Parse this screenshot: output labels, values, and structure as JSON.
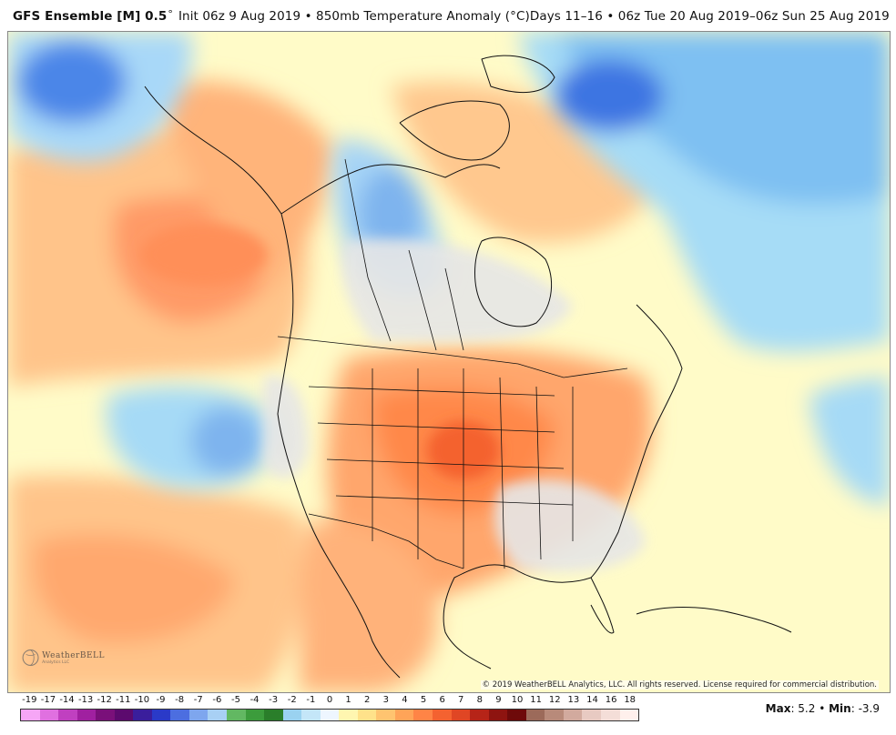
{
  "header": {
    "model": "GFS Ensemble [M] 0.5",
    "degree": "°",
    "init": "Init 06z 9 Aug 2019 • 850mb Temperature Anomaly (°C)",
    "days": "Days 11–16 • 06z Tue 20 Aug 2019–06z Sun 25 Aug 2019"
  },
  "copyright": "© 2019 WeatherBELL Analytics, LLC. All rights reserved. License required for commercial distribution.",
  "logo": {
    "name": "WeatherBELL",
    "sub": "Analytics LLC"
  },
  "stats": {
    "max_label": "Max",
    "max_value": ": 5.2",
    "sep": " • ",
    "min_label": "Min",
    "min_value": ": -3.9"
  },
  "colorbar": {
    "labels": [
      "-19",
      "-17",
      "-14",
      "-13",
      "-12",
      "-11",
      "-10",
      "-9",
      "-8",
      "-7",
      "-6",
      "-5",
      "-4",
      "-3",
      "-2",
      "-1",
      "0",
      "1",
      "2",
      "3",
      "4",
      "5",
      "6",
      "7",
      "8",
      "9",
      "10",
      "11",
      "12",
      "13",
      "14",
      "16",
      "18"
    ],
    "colors": [
      "#f6a6f6",
      "#e070e0",
      "#c040c0",
      "#a020a0",
      "#7a107a",
      "#5c0a6e",
      "#3a1e9c",
      "#2a3ac8",
      "#4c6ee0",
      "#7ea6ee",
      "#a8d0f4",
      "#62b862",
      "#3c9c3c",
      "#2a7e2a",
      "#9ad2f0",
      "#c4e6f8",
      "#eef6ff",
      "#fff6b0",
      "#ffe28a",
      "#ffc470",
      "#ffa458",
      "#ff8446",
      "#f46230",
      "#e04624",
      "#b62418",
      "#8e1410",
      "#6e0a0a",
      "#9c6a5a",
      "#b88a7a",
      "#d2aa9e",
      "#e8cac2",
      "#f4ded8",
      "#fff0ec"
    ]
  }
}
